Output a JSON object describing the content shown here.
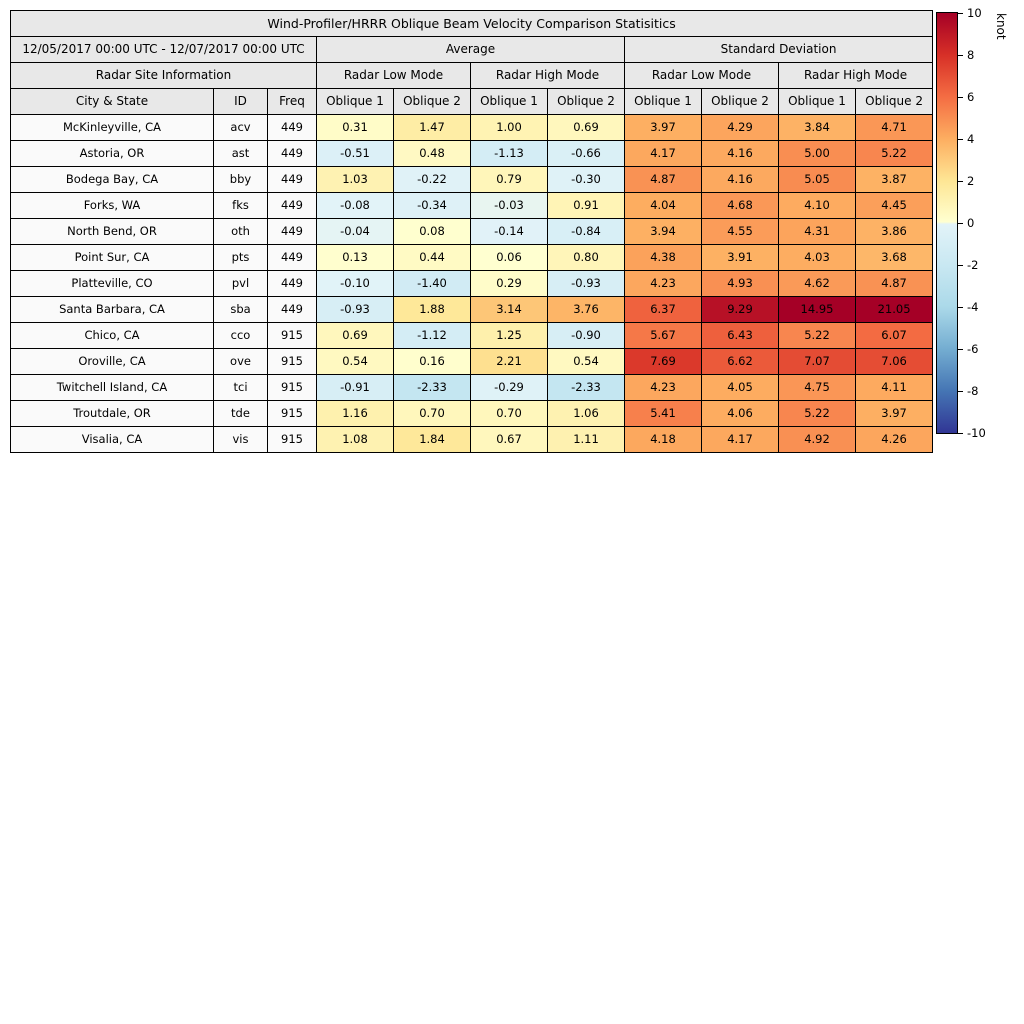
{
  "colors": {
    "header_bg": "#e8e8e8",
    "row_label_bg": "#fafafa",
    "border": "#000000"
  },
  "chart_data": {
    "type": "heatmap",
    "title": "Wind-Profiler/HRRR Oblique Beam Velocity Comparison Statisitics",
    "date_range": "12/05/2017 00:00 UTC - 12/07/2017 00:00 UTC",
    "group_headers": [
      "Average",
      "Standard Deviation"
    ],
    "site_info_header": "Radar Site Information",
    "mode_headers": [
      "Radar Low Mode",
      "Radar High Mode",
      "Radar Low Mode",
      "Radar High Mode"
    ],
    "column_headers": [
      "City & State",
      "ID",
      "Freq",
      "Oblique 1",
      "Oblique 2",
      "Oblique 1",
      "Oblique 2",
      "Oblique 1",
      "Oblique 2",
      "Oblique 1",
      "Oblique 2"
    ],
    "rows": [
      {
        "city": "McKinleyville, CA",
        "id": "acv",
        "freq": "449",
        "values": [
          "0.31",
          "1.47",
          "1.00",
          "0.69",
          "3.97",
          "4.29",
          "3.84",
          "4.71"
        ]
      },
      {
        "city": "Astoria, OR",
        "id": "ast",
        "freq": "449",
        "values": [
          "-0.51",
          "0.48",
          "-1.13",
          "-0.66",
          "4.17",
          "4.16",
          "5.00",
          "5.22"
        ]
      },
      {
        "city": "Bodega Bay, CA",
        "id": "bby",
        "freq": "449",
        "values": [
          "1.03",
          "-0.22",
          "0.79",
          "-0.30",
          "4.87",
          "4.16",
          "5.05",
          "3.87"
        ]
      },
      {
        "city": "Forks, WA",
        "id": "fks",
        "freq": "449",
        "values": [
          "-0.08",
          "-0.34",
          "-0.03",
          "0.91",
          "4.04",
          "4.68",
          "4.10",
          "4.45"
        ]
      },
      {
        "city": "North Bend, OR",
        "id": "oth",
        "freq": "449",
        "values": [
          "-0.04",
          "0.08",
          "-0.14",
          "-0.84",
          "3.94",
          "4.55",
          "4.31",
          "3.86"
        ]
      },
      {
        "city": "Point Sur, CA",
        "id": "pts",
        "freq": "449",
        "values": [
          "0.13",
          "0.44",
          "0.06",
          "0.80",
          "4.38",
          "3.91",
          "4.03",
          "3.68"
        ]
      },
      {
        "city": "Platteville, CO",
        "id": "pvl",
        "freq": "449",
        "values": [
          "-0.10",
          "-1.40",
          "0.29",
          "-0.93",
          "4.23",
          "4.93",
          "4.62",
          "4.87"
        ]
      },
      {
        "city": "Santa Barbara, CA",
        "id": "sba",
        "freq": "449",
        "values": [
          "-0.93",
          "1.88",
          "3.14",
          "3.76",
          "6.37",
          "9.29",
          "14.95",
          "21.05"
        ]
      },
      {
        "city": "Chico, CA",
        "id": "cco",
        "freq": "915",
        "values": [
          "0.69",
          "-1.12",
          "1.25",
          "-0.90",
          "5.67",
          "6.43",
          "5.22",
          "6.07"
        ]
      },
      {
        "city": "Oroville, CA",
        "id": "ove",
        "freq": "915",
        "values": [
          "0.54",
          "0.16",
          "2.21",
          "0.54",
          "7.69",
          "6.62",
          "7.07",
          "7.06"
        ]
      },
      {
        "city": "Twitchell Island, CA",
        "id": "tci",
        "freq": "915",
        "values": [
          "-0.91",
          "-2.33",
          "-0.29",
          "-2.33",
          "4.23",
          "4.05",
          "4.75",
          "4.11"
        ]
      },
      {
        "city": "Troutdale, OR",
        "id": "tde",
        "freq": "915",
        "values": [
          "1.16",
          "0.70",
          "0.70",
          "1.06",
          "5.41",
          "4.06",
          "5.22",
          "3.97"
        ]
      },
      {
        "city": "Visalia, CA",
        "id": "vis",
        "freq": "915",
        "values": [
          "1.08",
          "1.84",
          "0.67",
          "1.11",
          "4.18",
          "4.17",
          "4.92",
          "4.26"
        ]
      }
    ],
    "colorbar": {
      "label": "knot",
      "min": -10,
      "max": 10,
      "ticks": [
        "10",
        "8",
        "6",
        "4",
        "2",
        "0",
        "-2",
        "-4",
        "-6",
        "-8",
        "-10"
      ],
      "stops": [
        {
          "v": -10,
          "c": "#313695"
        },
        {
          "v": -8,
          "c": "#4575b4"
        },
        {
          "v": -6,
          "c": "#74add1"
        },
        {
          "v": -4,
          "c": "#abd9e9"
        },
        {
          "v": -2,
          "c": "#c9e8f2"
        },
        {
          "v": -0.05,
          "c": "#e2f3f8"
        },
        {
          "v": 0.05,
          "c": "#ffffd0"
        },
        {
          "v": 2,
          "c": "#fee695"
        },
        {
          "v": 4,
          "c": "#fdae61"
        },
        {
          "v": 6,
          "c": "#f46d43"
        },
        {
          "v": 8,
          "c": "#d73027"
        },
        {
          "v": 10,
          "c": "#a50026"
        }
      ]
    }
  }
}
